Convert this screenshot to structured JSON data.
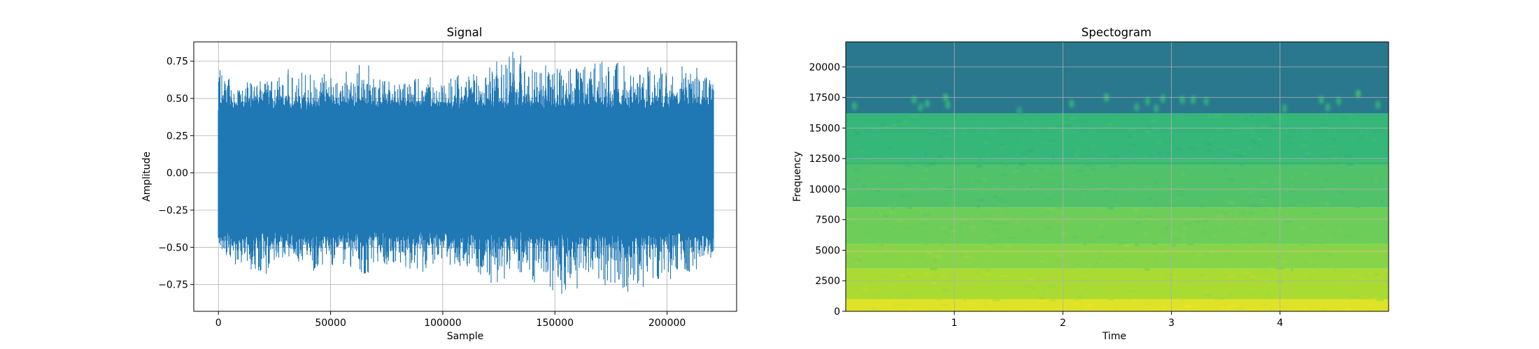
{
  "figure": {
    "background": "#ffffff"
  },
  "chart_data": [
    {
      "type": "line",
      "title": "Signal",
      "xlabel": "Sample",
      "ylabel": "Amplitude",
      "xlim": [
        -11000,
        231000
      ],
      "ylim": [
        -0.93,
        0.88
      ],
      "xticks": [
        0,
        50000,
        100000,
        150000,
        200000
      ],
      "yticks": [
        -0.75,
        -0.5,
        -0.25,
        0.0,
        0.25,
        0.5,
        0.75
      ],
      "xticklabels": [
        "0",
        "50000",
        "100000",
        "150000",
        "200000"
      ],
      "yticklabels": [
        "−0.75",
        "−0.50",
        "−0.25",
        "0.00",
        "0.25",
        "0.50",
        "0.75"
      ],
      "grid": true,
      "color": "#1f77b4",
      "series": [
        {
          "x_range": [
            0,
            220500
          ],
          "envelope": {
            "x": [
              0,
              11000,
              22000,
              33000,
              44000,
              55000,
              66000,
              77000,
              88000,
              99000,
              110000,
              121000,
              132000,
              143000,
              154000,
              165000,
              176000,
              187000,
              198000,
              209000,
              220500
            ],
            "upper": [
              0.69,
              0.6,
              0.65,
              0.68,
              0.68,
              0.64,
              0.72,
              0.61,
              0.65,
              0.6,
              0.67,
              0.72,
              0.8,
              0.7,
              0.71,
              0.73,
              0.75,
              0.68,
              0.7,
              0.72,
              0.66
            ],
            "lower": [
              -0.54,
              -0.62,
              -0.67,
              -0.58,
              -0.65,
              -0.6,
              -0.74,
              -0.62,
              -0.7,
              -0.6,
              -0.66,
              -0.72,
              -0.7,
              -0.78,
              -0.85,
              -0.7,
              -0.76,
              -0.82,
              -0.72,
              -0.68,
              -0.55
            ],
            "typical_upper": 0.45,
            "typical_lower": -0.42
          }
        }
      ]
    },
    {
      "type": "heatmap",
      "title": "Spectogram",
      "xlabel": "Time",
      "ylabel": "Frequency",
      "xlim": [
        0,
        5.0
      ],
      "ylim": [
        0,
        22050
      ],
      "xticks": [
        1,
        2,
        3,
        4
      ],
      "yticks": [
        0,
        2500,
        5000,
        7500,
        10000,
        12500,
        15000,
        17500,
        20000
      ],
      "xticklabels": [
        "1",
        "2",
        "3",
        "4"
      ],
      "yticklabels": [
        "0",
        "2500",
        "5000",
        "7500",
        "10000",
        "12500",
        "15000",
        "17500",
        "20000"
      ],
      "grid": true,
      "colormap": "viridis",
      "bands": [
        {
          "freq_range": [
            0,
            1000
          ],
          "level": 0.95
        },
        {
          "freq_range": [
            1000,
            3500
          ],
          "level": 0.86
        },
        {
          "freq_range": [
            3500,
            5500
          ],
          "level": 0.8
        },
        {
          "freq_range": [
            5500,
            8500
          ],
          "level": 0.75
        },
        {
          "freq_range": [
            8500,
            12000
          ],
          "level": 0.69
        },
        {
          "freq_range": [
            12000,
            16200
          ],
          "level": 0.63
        },
        {
          "freq_range": [
            16200,
            22050
          ],
          "level": 0.38
        }
      ],
      "horizontal_lines": [
        {
          "freq": 4900,
          "level": 0.86
        },
        {
          "freq": 7600,
          "level": 0.78
        },
        {
          "freq": 12300,
          "level": 0.69
        }
      ],
      "spots": [
        {
          "time": 0.08,
          "freq": 16800,
          "level": 0.62
        },
        {
          "time": 0.63,
          "freq": 17300,
          "level": 0.62
        },
        {
          "time": 0.69,
          "freq": 16700,
          "level": 0.6
        },
        {
          "time": 0.75,
          "freq": 17000,
          "level": 0.62
        },
        {
          "time": 0.92,
          "freq": 17500,
          "level": 0.64
        },
        {
          "time": 0.94,
          "freq": 16900,
          "level": 0.62
        },
        {
          "time": 1.6,
          "freq": 16400,
          "level": 0.58
        },
        {
          "time": 2.08,
          "freq": 17000,
          "level": 0.62
        },
        {
          "time": 2.4,
          "freq": 17500,
          "level": 0.64
        },
        {
          "time": 2.68,
          "freq": 16700,
          "level": 0.6
        },
        {
          "time": 2.78,
          "freq": 17200,
          "level": 0.62
        },
        {
          "time": 2.86,
          "freq": 16600,
          "level": 0.6
        },
        {
          "time": 2.92,
          "freq": 17400,
          "level": 0.62
        },
        {
          "time": 3.1,
          "freq": 17300,
          "level": 0.62
        },
        {
          "time": 3.2,
          "freq": 17300,
          "level": 0.62
        },
        {
          "time": 3.32,
          "freq": 17200,
          "level": 0.6
        },
        {
          "time": 4.04,
          "freq": 16600,
          "level": 0.6
        },
        {
          "time": 4.38,
          "freq": 17300,
          "level": 0.62
        },
        {
          "time": 4.44,
          "freq": 16700,
          "level": 0.6
        },
        {
          "time": 4.54,
          "freq": 17200,
          "level": 0.62
        },
        {
          "time": 4.72,
          "freq": 17800,
          "level": 0.66
        },
        {
          "time": 4.9,
          "freq": 16900,
          "level": 0.6
        }
      ]
    }
  ]
}
